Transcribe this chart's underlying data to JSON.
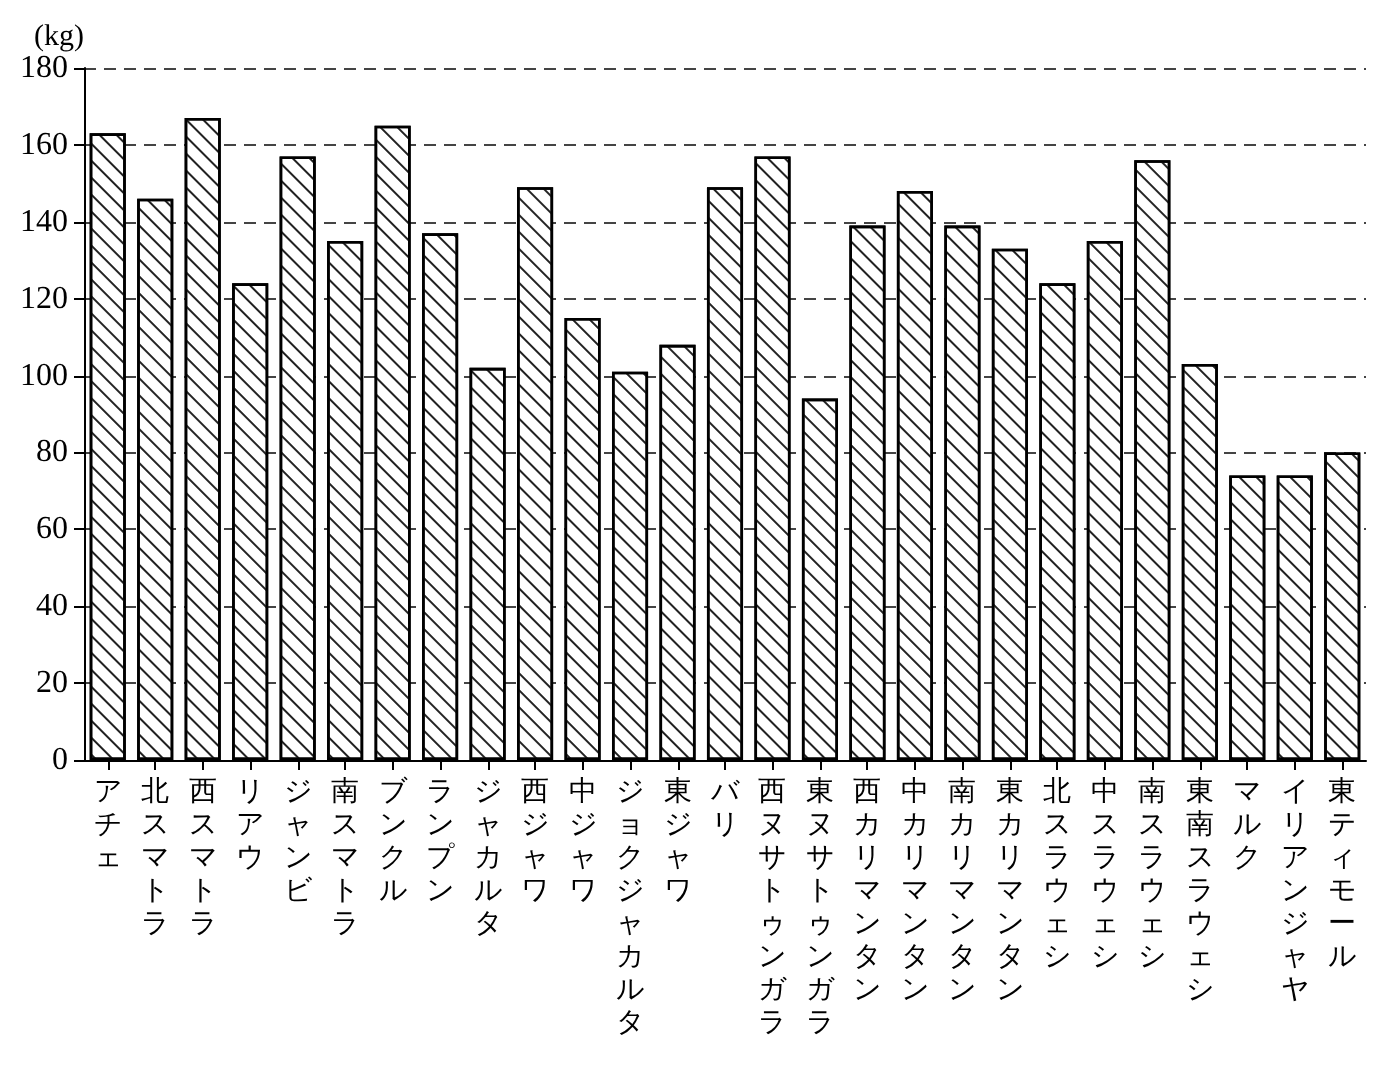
{
  "chart_data": {
    "type": "bar",
    "ylabel": "(kg)",
    "categories": [
      "アチェ",
      "北スマトラ",
      "西スマトラ",
      "リアウ",
      "ジャンビ",
      "南スマトラ",
      "ブンクル",
      "ランプン",
      "ジャカルタ",
      "西ジャワ",
      "中ジャワ",
      "ジョクジャカルタ",
      "東ジャワ",
      "バリ",
      "西ヌサトゥンガラ",
      "東ヌサトゥンガラ",
      "西カリマンタン",
      "中カリマンタン",
      "南カリマンタン",
      "東カリマンタン",
      "北スラウェシ",
      "中スラウェシ",
      "南スラウェシ",
      "東南スラウェシ",
      "マルク",
      "イリアンジャヤ",
      "東ティモール"
    ],
    "values": [
      163,
      146,
      167,
      124,
      157,
      135,
      165,
      137,
      102,
      149,
      115,
      101,
      108,
      149,
      157,
      94,
      139,
      148,
      139,
      133,
      124,
      135,
      156,
      103,
      74,
      74,
      80
    ],
    "color": "#ffffff",
    "ylim": [
      0,
      180
    ],
    "yticks": [
      0,
      20,
      40,
      60,
      80,
      100,
      120,
      140,
      160,
      180
    ],
    "grid": "y"
  }
}
